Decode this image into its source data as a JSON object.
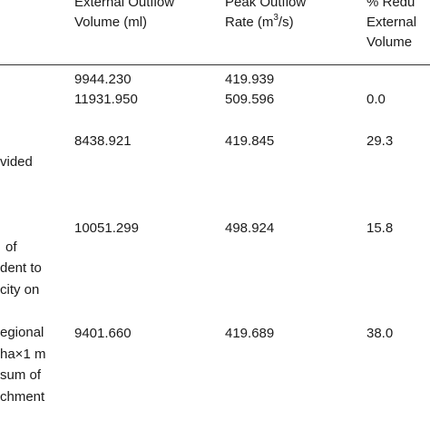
{
  "header": {
    "col_volume": [
      "External Outflow",
      "Volume (ml)"
    ],
    "col_peak": [
      "Peak Outflow",
      "Rate (m",
      "3",
      "/s)"
    ],
    "col_reduction": [
      "% Redu",
      "External",
      "Volume"
    ]
  },
  "rows": [
    {
      "desc": [],
      "volume": "9944.230",
      "peak": "419.939",
      "reduction": ""
    },
    {
      "desc": [],
      "volume": "11931.950",
      "peak": "509.596",
      "reduction": "0.0"
    },
    {
      "desc": [
        "vided"
      ],
      "volume": "8438.921",
      "peak": "419.845",
      "reduction": "29.3"
    },
    {
      "desc": [
        "of",
        "dent to",
        "city  on"
      ],
      "volume": "10051.299",
      "peak": "498.924",
      "reduction": "15.8"
    },
    {
      "desc": [
        "egional",
        "ha×1 m",
        "sum  of",
        "chment"
      ],
      "volume": "9401.660",
      "peak": "419.689",
      "reduction": "38.0"
    }
  ]
}
